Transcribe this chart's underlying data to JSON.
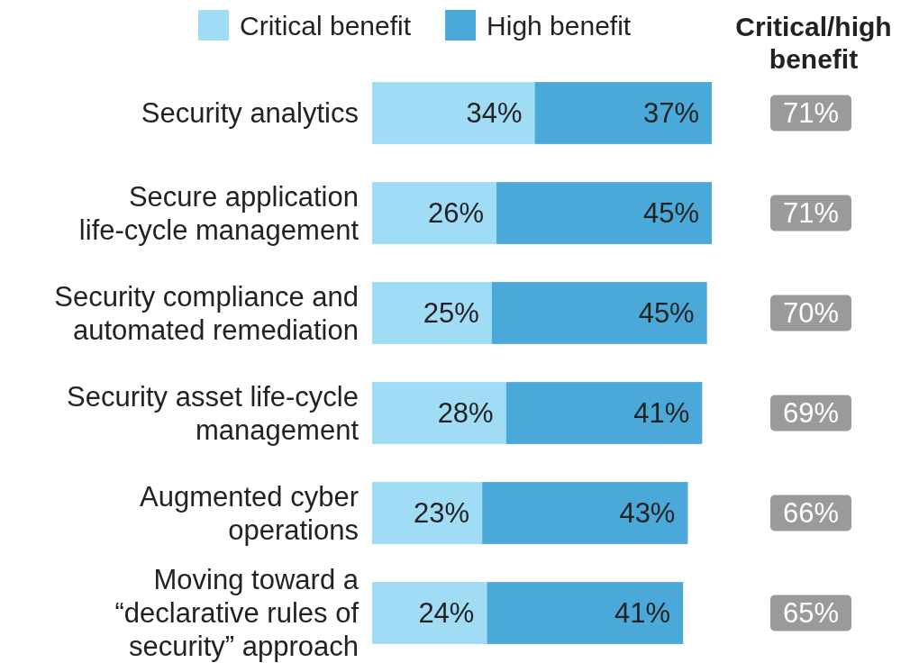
{
  "chart_data": {
    "type": "bar",
    "orientation": "horizontal",
    "stacked": true,
    "legend": "top",
    "categories": [
      "Security analytics",
      "Secure application life-cycle management",
      "Security compliance and automated remediation",
      "Security asset life-cycle management",
      "Augmented cyber operations",
      "Moving toward a “declarative rules of security” approach"
    ],
    "series": [
      {
        "name": "Critical benefit",
        "color": "#a0dcf6",
        "values": [
          34,
          26,
          25,
          28,
          23,
          24
        ],
        "value_labels": [
          "34%",
          "26%",
          "25%",
          "28%",
          "23%",
          "24%"
        ]
      },
      {
        "name": "High benefit",
        "color": "#4aa9d8",
        "values": [
          37,
          45,
          45,
          41,
          43,
          41
        ],
        "value_labels": [
          "37%",
          "45%",
          "45%",
          "41%",
          "43%",
          "41%"
        ]
      }
    ],
    "annotations": [
      "Critical/high benefit",
      "71%",
      "71%",
      "70%",
      "69%",
      "66%",
      "65%"
    ]
  }
}
